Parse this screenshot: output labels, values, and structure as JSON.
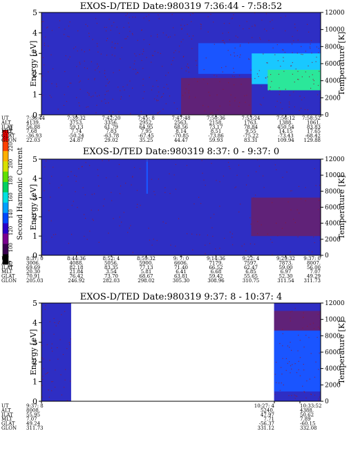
{
  "colors": {
    "background": "#ffffff",
    "plasma_low": "#2e2ec4",
    "plasma_mid": "#1a55ff",
    "plasma_high": "#19c8ff",
    "plasma_peak": "#2be79a",
    "noise": "#8a1a3a"
  },
  "colorbar": {
    "label": "Second Harmonic Current",
    "ticks": [
      "80",
      "100",
      "120",
      "140",
      "160",
      "180",
      "200",
      "220",
      "240"
    ],
    "colors": [
      "#000000",
      "#3a0050",
      "#7a0090",
      "#2a00c8",
      "#0048ff",
      "#00a0ff",
      "#00e0e0",
      "#00d060",
      "#60e000",
      "#d8e000",
      "#ffb000",
      "#ff4000",
      "#ff0000"
    ]
  },
  "panels": [
    {
      "title": "EXOS-D/TED   Date:980319  7:36:44 - 7:58:52",
      "ylabel": "Energy [eV]",
      "y2label": "Temperature [K]",
      "yticks": [
        "0",
        "1",
        "2",
        "3",
        "4",
        "5"
      ],
      "y2ticks": [
        "0",
        "2000",
        "4000",
        "6000",
        "8000",
        "10000",
        "12000"
      ],
      "row_labels": [
        "UT",
        "ALT",
        "ILAT",
        "MLT",
        "GLAT",
        "GLON"
      ],
      "columns": [
        [
          "7:36:44",
          "4139.",
          "56.88",
          "7.68",
          "-36.93",
          "22.03"
        ],
        [
          "7:39:32",
          "3753.",
          "59.13",
          "7.74",
          "-50.24",
          "24.87"
        ],
        [
          "7:42:20",
          "3356.",
          "61.79",
          "7.83",
          "-63.78",
          "29.02"
        ],
        [
          "7:45: 8",
          "2952.",
          "64.95",
          "7.95",
          "-67.45",
          "35.25"
        ],
        [
          "7:47:48",
          "2563.",
          "68.56",
          "8.14",
          "-70.85",
          "44.47"
        ],
        [
          "7:50:36",
          "2158.",
          "73.17",
          "8.51",
          "-73.86",
          "59.93"
        ],
        [
          "7:53:24",
          "1763.",
          "78.84",
          "9.55",
          "-75.22",
          "83.31"
        ],
        [
          "7:56:12",
          "1388.",
          "450.54",
          "14.15",
          "-73.43",
          "109.94"
        ],
        [
          "7:58:52",
          "1061.",
          "83.83",
          "17.65",
          "-68.42",
          "129.88"
        ]
      ]
    },
    {
      "title": "EXOS-D/TED   Date:980319  8:37: 0 - 9:37: 0",
      "ylabel": "Energy [eV]",
      "y2label": "Temperature [K]",
      "yticks": [
        "0",
        "1",
        "2",
        "3",
        "4",
        "5"
      ],
      "y2ticks": [
        "0",
        "2000",
        "4000",
        "6000",
        "8000",
        "10000",
        "12000"
      ],
      "row_labels": [
        "UT",
        "ALT",
        "ILAT",
        "MLT",
        "GLAT",
        "GLON"
      ],
      "columns": [
        [
          "8:37: 0",
          "3006.",
          "69.69",
          "20.30",
          "70.91",
          "205.03"
        ],
        [
          "8:44:36",
          "4088.",
          "82.18",
          "21.84",
          "76.42",
          "246.92"
        ],
        [
          "8:52: 4",
          "5056.",
          "83.35",
          "3.54",
          "73.70",
          "282.03"
        ],
        [
          "8:59:32",
          "5900.",
          "77.13",
          "5.81",
          "68.67",
          "298.02"
        ],
        [
          "9: 7: 0",
          "6606.",
          "71.40",
          "6.41",
          "63.81",
          "305.30"
        ],
        [
          "9:14:36",
          "7179.",
          "66.52",
          "6.68",
          "59.42",
          "308.96"
        ],
        [
          "9:22: 4",
          "7597.",
          "62.47",
          "6.85",
          "55.65",
          "310.75"
        ],
        [
          "9:29:32",
          "7873.",
          "59.00",
          "6.97",
          "52.30",
          "311.54"
        ],
        [
          "9:37: 0",
          "8007.",
          "56.00",
          "7.07",
          "49.29",
          "311.73"
        ]
      ]
    },
    {
      "title": "EXOS-D/TED   Date:980319  9:37: 8 - 10:37: 4",
      "ylabel": "Energy [eV]",
      "y2label": "Temperature [K]",
      "yticks": [
        "0",
        "1",
        "2",
        "3",
        "4",
        "5"
      ],
      "y2ticks": [
        "0",
        "2000",
        "4000",
        "6000",
        "8000",
        "10000",
        "12000"
      ],
      "row_labels": [
        "UT",
        "ALT",
        "ILAT",
        "MLT",
        "GLAT",
        "GLON"
      ],
      "columns": [
        [
          "9:37: 8",
          "8008.",
          "55.95",
          "7.07",
          "49.24",
          "311.73"
        ],
        [
          "10:27: 4",
          "5240.",
          "47.97",
          "7.71",
          "-56.37",
          "331.12"
        ],
        [
          "10:33:52",
          "4388.",
          "50.62",
          "7.89",
          "-60.15",
          "332.08"
        ]
      ]
    }
  ],
  "chart_data": [
    {
      "type": "heatmap",
      "title": "EXOS-D/TED   Date:980319  7:36:44 - 7:58:52",
      "ylabel": "Energy [eV]",
      "y2label": "Temperature [K]",
      "ylim": [
        0,
        5
      ],
      "y2lim": [
        0,
        12000
      ],
      "x_ticks": [
        "7:36:44",
        "7:39:32",
        "7:42:20",
        "7:45: 8",
        "7:47:48",
        "7:50:36",
        "7:53:24",
        "7:56:12",
        "7:58:52"
      ],
      "colorscale_label": "Second Harmonic Current",
      "colorscale_range": [
        80,
        240
      ],
      "data_spans": [
        [
          "7:36:44",
          "7:58:52"
        ]
      ],
      "features": [
        {
          "t_from": "7:36:44",
          "t_to": "7:58:52",
          "e_from": 0,
          "e_to": 5,
          "level": 100
        },
        {
          "t_from": "7:49:10",
          "t_to": "7:58:52",
          "e_from": 2.0,
          "e_to": 3.5,
          "level": 130
        },
        {
          "t_from": "7:53:24",
          "t_to": "7:58:52",
          "e_from": 1.5,
          "e_to": 3.0,
          "level": 150
        },
        {
          "t_from": "7:54:40",
          "t_to": "7:58:52",
          "e_from": 1.2,
          "e_to": 2.2,
          "level": 165
        },
        {
          "t_from": "7:47:48",
          "t_to": "7:53:24",
          "e_from": 0,
          "e_to": 1.8,
          "level": 85
        }
      ]
    },
    {
      "type": "heatmap",
      "title": "EXOS-D/TED   Date:980319  8:37: 0 - 9:37: 0",
      "ylabel": "Energy [eV]",
      "y2label": "Temperature [K]",
      "ylim": [
        0,
        5
      ],
      "y2lim": [
        0,
        12000
      ],
      "x_ticks": [
        "8:37: 0",
        "8:44:36",
        "8:52: 4",
        "8:59:32",
        "9: 7: 0",
        "9:14:36",
        "9:22: 4",
        "9:29:32",
        "9:37: 0"
      ],
      "colorscale_label": "Second Harmonic Current",
      "colorscale_range": [
        80,
        240
      ],
      "data_spans": [
        [
          "8:37: 0",
          "9:37: 0"
        ]
      ],
      "features": [
        {
          "t_from": "8:37: 0",
          "t_to": "9:37: 0",
          "e_from": 0,
          "e_to": 5,
          "level": 100
        },
        {
          "t_from": "8:59:32",
          "t_to": "8:59:52",
          "e_from": 3.2,
          "e_to": 5.0,
          "level": 130
        },
        {
          "t_from": "9:22: 4",
          "t_to": "9:37: 0",
          "e_from": 1.0,
          "e_to": 3.0,
          "level": 85
        }
      ]
    },
    {
      "type": "heatmap",
      "title": "EXOS-D/TED   Date:980319  9:37: 8 - 10:37: 4",
      "ylabel": "Energy [eV]",
      "y2label": "Temperature [K]",
      "ylim": [
        0,
        5
      ],
      "y2lim": [
        0,
        12000
      ],
      "x_ticks": [
        "9:37: 8",
        "10:27: 4",
        "10:33:52"
      ],
      "colorscale_label": "Second Harmonic Current",
      "colorscale_range": [
        80,
        240
      ],
      "data_spans": [
        [
          "9:37: 8",
          "9:43:30"
        ],
        [
          "10:27: 4",
          "10:37: 4"
        ]
      ],
      "features": [
        {
          "t_from": "9:37: 8",
          "t_to": "9:43:30",
          "e_from": 0,
          "e_to": 5,
          "level": 100
        },
        {
          "t_from": "10:27: 4",
          "t_to": "10:37: 4",
          "e_from": 0,
          "e_to": 5,
          "level": 100
        },
        {
          "t_from": "10:27: 4",
          "t_to": "10:37: 4",
          "e_from": 0.5,
          "e_to": 3.6,
          "level": 130
        },
        {
          "t_from": "10:27: 4",
          "t_to": "10:37: 4",
          "e_from": 3.6,
          "e_to": 4.6,
          "level": 85
        }
      ]
    }
  ]
}
